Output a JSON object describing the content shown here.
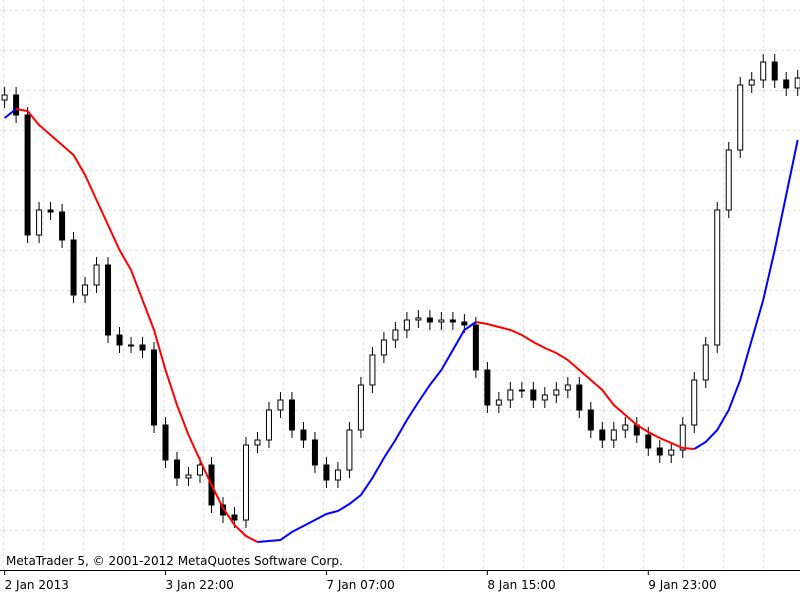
{
  "chart_data": {
    "type": "candlestick",
    "watermark": "MetaTrader 5, © 2001-2012 MetaQuotes Software Corp.",
    "candle_color": "#000000",
    "open": [
      470,
      475,
      455,
      335,
      360,
      358,
      330,
      275,
      285,
      305,
      235,
      225,
      225,
      220,
      145,
      110,
      92,
      95,
      105,
      65,
      55,
      50,
      125,
      130,
      160,
      170,
      140,
      130,
      105,
      90,
      100,
      140,
      185,
      215,
      230,
      240,
      250,
      252,
      248,
      250,
      248,
      245,
      200,
      165,
      170,
      180,
      180,
      170,
      175,
      180,
      185,
      160,
      140,
      130,
      140,
      145,
      135,
      122,
      115,
      120,
      145,
      190,
      225,
      360,
      420,
      485,
      490,
      508,
      490,
      482
    ],
    "high": [
      483,
      483,
      463,
      368,
      368,
      366,
      338,
      293,
      313,
      313,
      243,
      233,
      233,
      228,
      153,
      118,
      103,
      113,
      113,
      73,
      63,
      133,
      138,
      168,
      178,
      178,
      148,
      138,
      113,
      108,
      148,
      193,
      223,
      238,
      248,
      258,
      260,
      260,
      258,
      258,
      256,
      253,
      208,
      178,
      188,
      188,
      188,
      183,
      188,
      193,
      193,
      168,
      148,
      148,
      153,
      153,
      143,
      130,
      128,
      153,
      198,
      233,
      368,
      428,
      493,
      498,
      516,
      516,
      498,
      500
    ],
    "low": [
      462,
      447,
      327,
      327,
      350,
      322,
      267,
      267,
      277,
      227,
      217,
      217,
      212,
      137,
      102,
      84,
      84,
      87,
      57,
      47,
      42,
      42,
      117,
      122,
      152,
      132,
      122,
      97,
      82,
      82,
      92,
      132,
      177,
      207,
      222,
      232,
      242,
      240,
      240,
      240,
      237,
      192,
      157,
      157,
      162,
      172,
      162,
      162,
      167,
      172,
      152,
      132,
      122,
      122,
      132,
      127,
      114,
      107,
      107,
      112,
      137,
      182,
      217,
      352,
      412,
      477,
      482,
      482,
      474,
      474
    ],
    "close": [
      475,
      455,
      335,
      360,
      358,
      330,
      275,
      285,
      305,
      235,
      225,
      225,
      220,
      145,
      110,
      92,
      95,
      105,
      65,
      55,
      50,
      125,
      130,
      160,
      170,
      140,
      130,
      105,
      90,
      100,
      140,
      185,
      215,
      230,
      240,
      250,
      252,
      248,
      250,
      248,
      245,
      200,
      165,
      170,
      180,
      180,
      170,
      175,
      180,
      185,
      160,
      140,
      130,
      140,
      145,
      135,
      122,
      115,
      120,
      145,
      190,
      225,
      360,
      420,
      485,
      490,
      508,
      490,
      482,
      492
    ],
    "ma": {
      "up_color": "#0000ff",
      "down_color": "#ff0000",
      "values": [
        452,
        461,
        459,
        445,
        435,
        425,
        415,
        395,
        370,
        345,
        320,
        300,
        270,
        240,
        200,
        165,
        135,
        110,
        85,
        62,
        45,
        34,
        28,
        29,
        30,
        38,
        44,
        50,
        56,
        59,
        66,
        75,
        92,
        112,
        130,
        150,
        168,
        185,
        200,
        220,
        240,
        248,
        246,
        243,
        240,
        235,
        228,
        222,
        217,
        210,
        200,
        190,
        180,
        165,
        155,
        145,
        138,
        132,
        127,
        122,
        121,
        128,
        140,
        160,
        190,
        230,
        270,
        320,
        375,
        430
      ]
    },
    "xlim": [
      -0.4,
      69.2
    ],
    "ylim": [
      0,
      570
    ],
    "xticks": [
      {
        "value": 0,
        "label": "2 Jan 2013"
      },
      {
        "value": 14,
        "label": "3 Jan 22:00"
      },
      {
        "value": 28,
        "label": "7 Jan 07:00"
      },
      {
        "value": 42,
        "label": "8 Jan 15:00"
      },
      {
        "value": 56,
        "label": "9 Jan 23:00"
      }
    ]
  }
}
